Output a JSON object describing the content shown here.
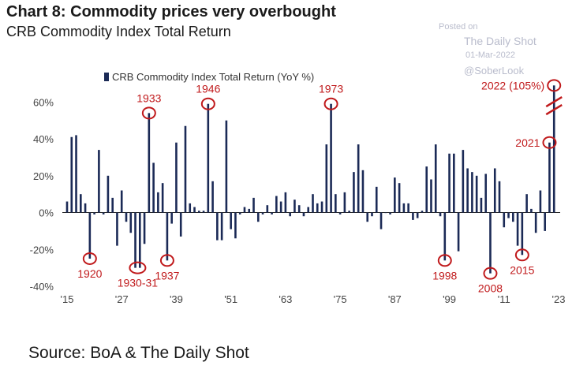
{
  "header": {
    "title": "Chart 8: Commodity prices very overbought",
    "subtitle": "CRB Commodity Index Total Return"
  },
  "watermark": {
    "posted": "Posted on",
    "name": "The Daily Shot",
    "date": "01-Mar-2022",
    "handle": "@SoberLook"
  },
  "source": "Source: BoA & The Daily Shot",
  "colors": {
    "bar": "#1b2a56",
    "annotation": "#c0191b"
  },
  "chart_data": {
    "type": "bar",
    "title": "",
    "xlabel": "",
    "ylabel": "",
    "legend": {
      "label": "CRB Commodity Index Total Return (YoY %)",
      "position": "top"
    },
    "xlim": [
      1915,
      2023
    ],
    "ylim": [
      -40,
      70
    ],
    "y_ticks": [
      60,
      40,
      20,
      0,
      -20,
      -40
    ],
    "y_tick_labels": [
      "60%",
      "40%",
      "20%",
      "0%",
      "-20%",
      "-40%"
    ],
    "x_ticks": [
      1915,
      1927,
      1939,
      1951,
      1963,
      1975,
      1987,
      1999,
      2011,
      2023
    ],
    "x_tick_labels": [
      "'15",
      "'27",
      "'39",
      "'51",
      "'63",
      "'75",
      "'87",
      "'99",
      "'11",
      "'23"
    ],
    "grid": false,
    "series": [
      {
        "values": [
          {
            "x": 1915,
            "y": 6
          },
          {
            "x": 1916,
            "y": 41
          },
          {
            "x": 1917,
            "y": 42
          },
          {
            "x": 1918,
            "y": 10
          },
          {
            "x": 1919,
            "y": 5
          },
          {
            "x": 1920,
            "y": -25
          },
          {
            "x": 1921,
            "y": -1
          },
          {
            "x": 1922,
            "y": 34
          },
          {
            "x": 1923,
            "y": -1
          },
          {
            "x": 1924,
            "y": 20
          },
          {
            "x": 1925,
            "y": 8
          },
          {
            "x": 1926,
            "y": -18
          },
          {
            "x": 1927,
            "y": 12
          },
          {
            "x": 1928,
            "y": -5
          },
          {
            "x": 1929,
            "y": -11
          },
          {
            "x": 1930,
            "y": -30
          },
          {
            "x": 1931,
            "y": -30
          },
          {
            "x": 1932,
            "y": -17
          },
          {
            "x": 1933,
            "y": 54
          },
          {
            "x": 1934,
            "y": 27
          },
          {
            "x": 1935,
            "y": 11
          },
          {
            "x": 1936,
            "y": 16
          },
          {
            "x": 1937,
            "y": -26
          },
          {
            "x": 1938,
            "y": -6
          },
          {
            "x": 1939,
            "y": 38
          },
          {
            "x": 1940,
            "y": -13
          },
          {
            "x": 1941,
            "y": 47
          },
          {
            "x": 1942,
            "y": 5
          },
          {
            "x": 1943,
            "y": 3
          },
          {
            "x": 1944,
            "y": 1
          },
          {
            "x": 1945,
            "y": 1
          },
          {
            "x": 1946,
            "y": 59
          },
          {
            "x": 1947,
            "y": 17
          },
          {
            "x": 1948,
            "y": -15
          },
          {
            "x": 1949,
            "y": -15
          },
          {
            "x": 1950,
            "y": 50
          },
          {
            "x": 1951,
            "y": -9
          },
          {
            "x": 1952,
            "y": -14
          },
          {
            "x": 1953,
            "y": -1
          },
          {
            "x": 1954,
            "y": 3
          },
          {
            "x": 1955,
            "y": 2
          },
          {
            "x": 1956,
            "y": 8
          },
          {
            "x": 1957,
            "y": -5
          },
          {
            "x": 1958,
            "y": -1
          },
          {
            "x": 1959,
            "y": 4
          },
          {
            "x": 1960,
            "y": -1
          },
          {
            "x": 1961,
            "y": 9
          },
          {
            "x": 1962,
            "y": 6
          },
          {
            "x": 1963,
            "y": 11
          },
          {
            "x": 1964,
            "y": -2
          },
          {
            "x": 1965,
            "y": 7
          },
          {
            "x": 1966,
            "y": 4
          },
          {
            "x": 1967,
            "y": -2
          },
          {
            "x": 1968,
            "y": 3
          },
          {
            "x": 1969,
            "y": 10
          },
          {
            "x": 1970,
            "y": 5
          },
          {
            "x": 1971,
            "y": 6
          },
          {
            "x": 1972,
            "y": 37
          },
          {
            "x": 1973,
            "y": 59
          },
          {
            "x": 1974,
            "y": 10
          },
          {
            "x": 1975,
            "y": -1
          },
          {
            "x": 1976,
            "y": 11
          },
          {
            "x": 1977,
            "y": 1
          },
          {
            "x": 1978,
            "y": 22
          },
          {
            "x": 1979,
            "y": 37
          },
          {
            "x": 1980,
            "y": 23
          },
          {
            "x": 1981,
            "y": -5
          },
          {
            "x": 1982,
            "y": -2
          },
          {
            "x": 1983,
            "y": 14
          },
          {
            "x": 1984,
            "y": -9
          },
          {
            "x": 1985,
            "y": 0
          },
          {
            "x": 1986,
            "y": -1
          },
          {
            "x": 1987,
            "y": 19
          },
          {
            "x": 1988,
            "y": 16
          },
          {
            "x": 1989,
            "y": 5
          },
          {
            "x": 1990,
            "y": 5
          },
          {
            "x": 1991,
            "y": -4
          },
          {
            "x": 1992,
            "y": -3
          },
          {
            "x": 1993,
            "y": 1
          },
          {
            "x": 1994,
            "y": 25
          },
          {
            "x": 1995,
            "y": 18
          },
          {
            "x": 1996,
            "y": 37
          },
          {
            "x": 1997,
            "y": -2
          },
          {
            "x": 1998,
            "y": -26
          },
          {
            "x": 1999,
            "y": 32
          },
          {
            "x": 2000,
            "y": 32
          },
          {
            "x": 2001,
            "y": -21
          },
          {
            "x": 2002,
            "y": 34
          },
          {
            "x": 2003,
            "y": 24
          },
          {
            "x": 2004,
            "y": 22
          },
          {
            "x": 2005,
            "y": 20
          },
          {
            "x": 2006,
            "y": 8
          },
          {
            "x": 2007,
            "y": 21
          },
          {
            "x": 2008,
            "y": -33
          },
          {
            "x": 2009,
            "y": 24
          },
          {
            "x": 2010,
            "y": 17
          },
          {
            "x": 2011,
            "y": -8
          },
          {
            "x": 2012,
            "y": -3
          },
          {
            "x": 2013,
            "y": -5
          },
          {
            "x": 2014,
            "y": -18
          },
          {
            "x": 2015,
            "y": -23
          },
          {
            "x": 2016,
            "y": 10
          },
          {
            "x": 2017,
            "y": 2
          },
          {
            "x": 2018,
            "y": -11
          },
          {
            "x": 2019,
            "y": 12
          },
          {
            "x": 2020,
            "y": -10
          },
          {
            "x": 2021,
            "y": 38
          },
          {
            "x": 2022,
            "y": 105
          }
        ]
      }
    ],
    "axis_break": {
      "year": 2022,
      "marker": "//",
      "display_y": 69
    },
    "annotations": [
      {
        "label": "1920",
        "x": 1920,
        "y": -25,
        "text_side": "below"
      },
      {
        "label": "1930-31",
        "x": 1930.5,
        "y": -30,
        "text_side": "below"
      },
      {
        "label": "1933",
        "x": 1933,
        "y": 54,
        "text_side": "above"
      },
      {
        "label": "1937",
        "x": 1937,
        "y": -26,
        "text_side": "below"
      },
      {
        "label": "1946",
        "x": 1946,
        "y": 59,
        "text_side": "above"
      },
      {
        "label": "1973",
        "x": 1973,
        "y": 59,
        "text_side": "above"
      },
      {
        "label": "1998",
        "x": 1998,
        "y": -26,
        "text_side": "below"
      },
      {
        "label": "2008",
        "x": 2008,
        "y": -33,
        "text_side": "below"
      },
      {
        "label": "2015",
        "x": 2015,
        "y": -23,
        "text_side": "below"
      },
      {
        "label": "2021",
        "x": 2021,
        "y": 38,
        "text_side": "left"
      },
      {
        "label": "2022 (105%)",
        "x": 2022,
        "y": 69,
        "text_side": "left"
      }
    ]
  }
}
